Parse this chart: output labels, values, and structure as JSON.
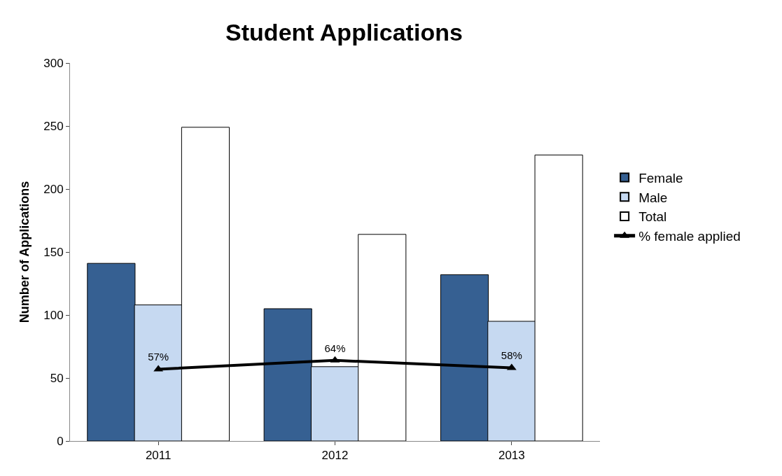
{
  "chart_data": {
    "type": "bar",
    "title": "Student Applications",
    "ylabel": "Number of Applications",
    "categories": [
      "2011",
      "2012",
      "2013"
    ],
    "series": [
      {
        "name": "Female",
        "color": "#366092",
        "values": [
          141,
          105,
          132
        ]
      },
      {
        "name": "Male",
        "color": "#c6d9f1",
        "values": [
          108,
          59,
          95
        ]
      },
      {
        "name": "Total",
        "color": "#ffffff",
        "values": [
          249,
          164,
          227
        ]
      },
      {
        "name": "% female applied",
        "type": "line",
        "color": "#000000",
        "marker": "triangle",
        "values": [
          57,
          64,
          58
        ],
        "value_labels": [
          "57%",
          "64%",
          "58%"
        ]
      }
    ],
    "ylim": [
      0,
      300
    ],
    "yticks": [
      0,
      50,
      100,
      150,
      200,
      250,
      300
    ],
    "legend": "right"
  }
}
